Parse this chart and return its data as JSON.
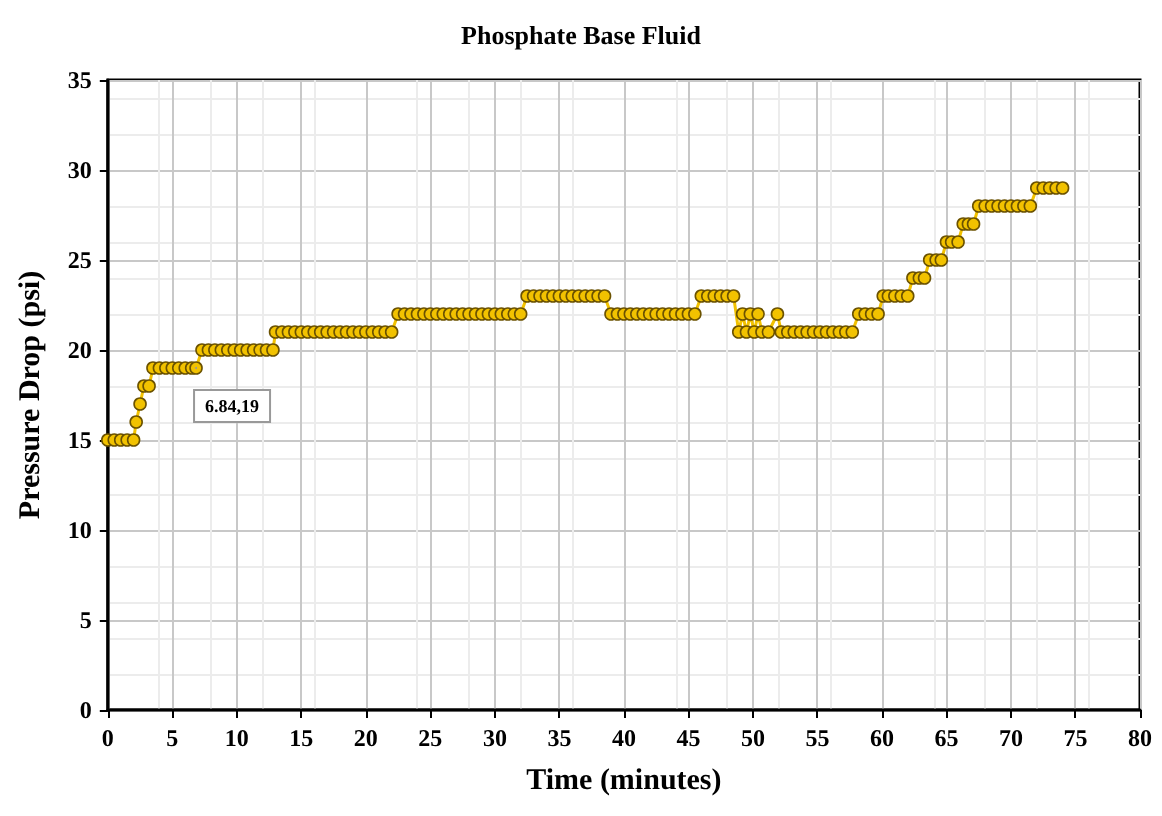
{
  "chart_data": {
    "type": "line",
    "title": "Phosphate Base Fluid",
    "xlabel": "Time (minutes)",
    "ylabel": "Pressure Drop (psi)",
    "xlim": [
      0,
      80
    ],
    "xticks": [
      0,
      5,
      10,
      15,
      20,
      25,
      30,
      35,
      40,
      45,
      50,
      55,
      60,
      65,
      70,
      75,
      80
    ],
    "ylim": [
      0,
      35
    ],
    "yticks": [
      0,
      5,
      10,
      15,
      20,
      25,
      30,
      35
    ],
    "grid": true,
    "marker": "circle",
    "annotations": [
      {
        "text": "6.84,19",
        "x": 6.84,
        "y": 19
      }
    ],
    "x": [
      0,
      0.5,
      1,
      1.5,
      2,
      2.2,
      2.5,
      2.8,
      3.2,
      3.5,
      4,
      4.5,
      5,
      5.5,
      6,
      6.5,
      6.84,
      7.3,
      7.8,
      8.3,
      8.8,
      9.3,
      9.8,
      10.3,
      10.8,
      11.3,
      11.8,
      12.3,
      12.8,
      13,
      13.5,
      14,
      14.5,
      15,
      15.5,
      16,
      16.5,
      17,
      17.5,
      18,
      18.5,
      19,
      19.5,
      20,
      20.5,
      21,
      21.5,
      22,
      22.5,
      23,
      23.5,
      24,
      24.5,
      25,
      25.5,
      26,
      26.5,
      27,
      27.5,
      28,
      28.5,
      29,
      29.5,
      30,
      30.5,
      31,
      31.5,
      32,
      32.5,
      33,
      33.5,
      34,
      34.5,
      35,
      35.5,
      36,
      36.5,
      37,
      37.5,
      38,
      38.5,
      39,
      39.5,
      40,
      40.5,
      41,
      41.5,
      42,
      42.5,
      43,
      43.5,
      44,
      44.5,
      45,
      45.5,
      46,
      46.5,
      47,
      47.5,
      48,
      48.5,
      48.9,
      49.2,
      49.5,
      49.8,
      50.1,
      50.4,
      50.7,
      51.2,
      51.9,
      52.2,
      52.7,
      53.2,
      53.7,
      54.2,
      54.7,
      55.2,
      55.7,
      56.2,
      56.7,
      57.2,
      57.7,
      58.2,
      58.7,
      59.2,
      59.7,
      60.1,
      60.5,
      61,
      61.5,
      62,
      62.4,
      62.9,
      63.3,
      63.7,
      64.2,
      64.6,
      65,
      65.4,
      65.9,
      66.3,
      66.7,
      67.1,
      67.5,
      68,
      68.5,
      69,
      69.5,
      70,
      70.5,
      71,
      71.5,
      72,
      72.5,
      73,
      73.5,
      74
    ],
    "series": [
      {
        "color": "#f2c200",
        "values": [
          15,
          15,
          15,
          15,
          15,
          16,
          17,
          18,
          18,
          19,
          19,
          19,
          19,
          19,
          19,
          19,
          19,
          20,
          20,
          20,
          20,
          20,
          20,
          20,
          20,
          20,
          20,
          20,
          20,
          21,
          21,
          21,
          21,
          21,
          21,
          21,
          21,
          21,
          21,
          21,
          21,
          21,
          21,
          21,
          21,
          21,
          21,
          21,
          22,
          22,
          22,
          22,
          22,
          22,
          22,
          22,
          22,
          22,
          22,
          22,
          22,
          22,
          22,
          22,
          22,
          22,
          22,
          22,
          23,
          23,
          23,
          23,
          23,
          23,
          23,
          23,
          23,
          23,
          23,
          23,
          23,
          22,
          22,
          22,
          22,
          22,
          22,
          22,
          22,
          22,
          22,
          22,
          22,
          22,
          22,
          23,
          23,
          23,
          23,
          23,
          23,
          21,
          22,
          21,
          22,
          21,
          22,
          21,
          21,
          22,
          21,
          21,
          21,
          21,
          21,
          21,
          21,
          21,
          21,
          21,
          21,
          21,
          22,
          22,
          22,
          22,
          23,
          23,
          23,
          23,
          23,
          24,
          24,
          24,
          25,
          25,
          25,
          26,
          26,
          26,
          27,
          27,
          27,
          28,
          28,
          28,
          28,
          28,
          28,
          28,
          28,
          28,
          29,
          29,
          29,
          29,
          29
        ]
      }
    ]
  }
}
